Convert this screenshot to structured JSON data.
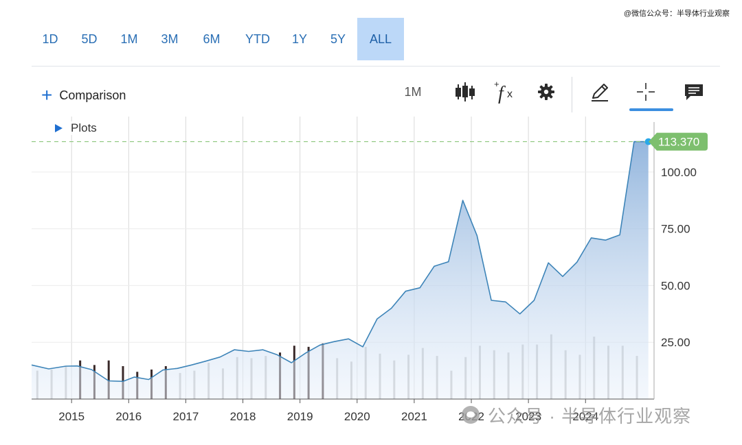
{
  "watermark_top": "@微信公众号：半导体行业观察",
  "ranges": [
    {
      "label": "1D",
      "active": false
    },
    {
      "label": "5D",
      "active": false
    },
    {
      "label": "1M",
      "active": false
    },
    {
      "label": "3M",
      "active": false
    },
    {
      "label": "6M",
      "active": false
    },
    {
      "label": "YTD",
      "active": false
    },
    {
      "label": "1Y",
      "active": false
    },
    {
      "label": "5Y",
      "active": false
    },
    {
      "label": "ALL",
      "active": true
    }
  ],
  "toolbar": {
    "comparison_label": "Comparison",
    "interval_label": "1M",
    "icons": [
      "candlestick-icon",
      "function-icon",
      "gear-icon",
      "pencil-icon",
      "crosshair-icon",
      "comment-icon"
    ],
    "active_tool": "crosshair-icon"
  },
  "plots_label": "Plots",
  "watermark_bottom": "公众号 · 半导体行业观察",
  "colors": {
    "accent": "#2a6fb5",
    "line": "#3d84b8",
    "area_top": "#9dbde0",
    "last_price_tag": "#7dbf6e",
    "last_point": "#29a8e8",
    "volume_bar": "#c4c4c4",
    "volume_bar_dark": "#3a2a2a"
  },
  "chart_data": {
    "type": "area",
    "title": "",
    "xlabel": "",
    "ylabel": "",
    "last_value": "113.370",
    "ylim": [
      0,
      122
    ],
    "xlim": [
      2014.3,
      2025.2
    ],
    "y_ticks": [
      "25.00",
      "50.00",
      "75.00",
      "100.00"
    ],
    "x_ticks": [
      "2015",
      "2016",
      "2017",
      "2018",
      "2019",
      "2020",
      "2021",
      "2022",
      "2023",
      "2024"
    ],
    "grid": true,
    "series": [
      {
        "values": [
          [
            2014.3,
            15.0
          ],
          [
            2014.6,
            13.3
          ],
          [
            2014.9,
            14.5
          ],
          [
            2015.1,
            14.6
          ],
          [
            2015.35,
            13.0
          ],
          [
            2015.65,
            8.0
          ],
          [
            2015.9,
            7.8
          ],
          [
            2016.1,
            9.7
          ],
          [
            2016.35,
            8.6
          ],
          [
            2016.6,
            12.8
          ],
          [
            2016.85,
            13.5
          ],
          [
            2017.1,
            15.0
          ],
          [
            2017.35,
            16.7
          ],
          [
            2017.6,
            18.5
          ],
          [
            2017.85,
            21.7
          ],
          [
            2018.1,
            21.0
          ],
          [
            2018.35,
            21.7
          ],
          [
            2018.6,
            19.5
          ],
          [
            2018.85,
            16.0
          ],
          [
            2019.1,
            20.3
          ],
          [
            2019.35,
            23.8
          ],
          [
            2019.6,
            25.3
          ],
          [
            2019.85,
            26.5
          ],
          [
            2020.1,
            23.0
          ],
          [
            2020.35,
            35.3
          ],
          [
            2020.6,
            40.0
          ],
          [
            2020.85,
            47.5
          ],
          [
            2021.1,
            49.0
          ],
          [
            2021.35,
            58.5
          ],
          [
            2021.6,
            60.5
          ],
          [
            2021.85,
            87.5
          ],
          [
            2022.1,
            72.0
          ],
          [
            2022.35,
            43.5
          ],
          [
            2022.6,
            42.8
          ],
          [
            2022.85,
            37.5
          ],
          [
            2023.1,
            43.5
          ],
          [
            2023.35,
            60.0
          ],
          [
            2023.6,
            54.0
          ],
          [
            2023.85,
            60.3
          ],
          [
            2024.1,
            71.0
          ],
          [
            2024.35,
            70.0
          ],
          [
            2024.6,
            72.3
          ],
          [
            2024.85,
            113.37
          ],
          [
            2025.1,
            113.37
          ]
        ]
      }
    ],
    "volume": [
      [
        2014.4,
        12.5,
        0
      ],
      [
        2014.65,
        13.0,
        0
      ],
      [
        2014.9,
        14.5,
        0
      ],
      [
        2015.15,
        17.0,
        1
      ],
      [
        2015.4,
        15.0,
        1
      ],
      [
        2015.65,
        17.0,
        1
      ],
      [
        2015.9,
        14.5,
        1
      ],
      [
        2016.15,
        12.0,
        1
      ],
      [
        2016.4,
        13.0,
        1
      ],
      [
        2016.65,
        14.5,
        1
      ],
      [
        2016.9,
        11.5,
        0
      ],
      [
        2017.15,
        12.5,
        0
      ],
      [
        2017.4,
        16.0,
        0
      ],
      [
        2017.65,
        13.5,
        0
      ],
      [
        2017.9,
        18.5,
        0
      ],
      [
        2018.15,
        18.0,
        0
      ],
      [
        2018.4,
        19.0,
        0
      ],
      [
        2018.65,
        20.5,
        1
      ],
      [
        2018.9,
        23.5,
        1
      ],
      [
        2019.15,
        23.0,
        1
      ],
      [
        2019.4,
        24.5,
        1
      ],
      [
        2019.65,
        18.0,
        0
      ],
      [
        2019.9,
        16.5,
        0
      ],
      [
        2020.15,
        23.0,
        0
      ],
      [
        2020.4,
        20.0,
        0
      ],
      [
        2020.65,
        17.0,
        0
      ],
      [
        2020.9,
        19.5,
        0
      ],
      [
        2021.15,
        22.5,
        0
      ],
      [
        2021.4,
        19.0,
        0
      ],
      [
        2021.65,
        12.5,
        0
      ],
      [
        2021.9,
        18.5,
        0
      ],
      [
        2022.15,
        23.5,
        0
      ],
      [
        2022.4,
        21.5,
        0
      ],
      [
        2022.65,
        20.5,
        0
      ],
      [
        2022.9,
        24.0,
        0
      ],
      [
        2023.15,
        24.0,
        0
      ],
      [
        2023.4,
        28.5,
        0
      ],
      [
        2023.65,
        21.5,
        0
      ],
      [
        2023.9,
        19.5,
        0
      ],
      [
        2024.15,
        27.5,
        0
      ],
      [
        2024.4,
        23.5,
        0
      ],
      [
        2024.65,
        23.5,
        0
      ],
      [
        2024.9,
        19.0,
        0
      ]
    ]
  }
}
